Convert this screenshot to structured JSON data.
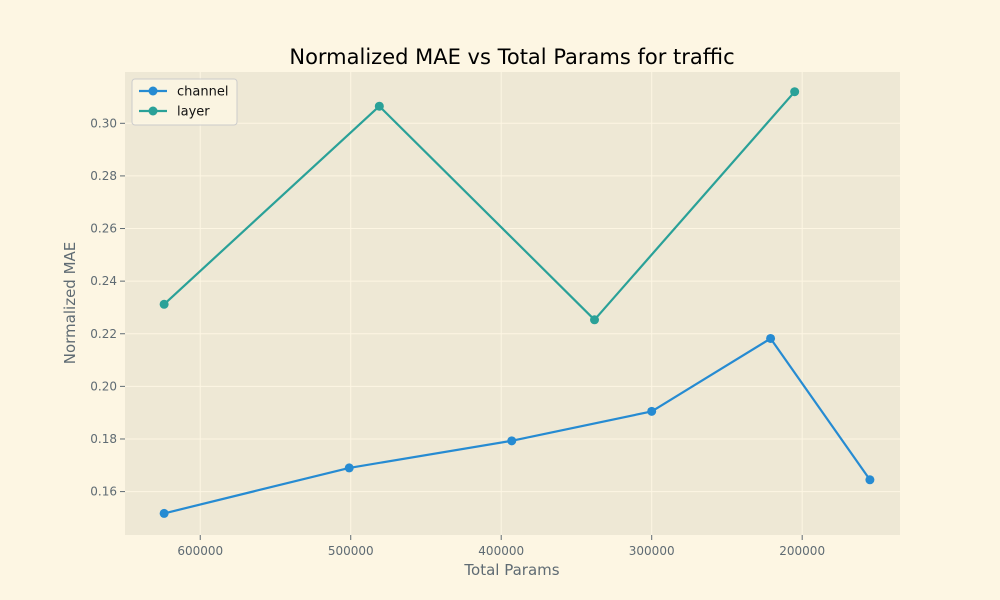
{
  "chart_data": {
    "type": "line",
    "title": "Normalized MAE vs Total Params for traffic",
    "xlabel": "Total Params",
    "ylabel": "Normalized MAE",
    "x_inverted": true,
    "xlim": [
      650000,
      135000
    ],
    "ylim": [
      0.1435,
      0.3195
    ],
    "xticks": [
      600000,
      500000,
      400000,
      300000,
      200000
    ],
    "yticks": [
      0.16,
      0.18,
      0.2,
      0.22,
      0.24,
      0.26,
      0.28,
      0.3
    ],
    "xtick_labels": [
      "600000",
      "500000",
      "400000",
      "300000",
      "200000"
    ],
    "ytick_labels": [
      "0.16",
      "0.18",
      "0.20",
      "0.22",
      "0.24",
      "0.26",
      "0.28",
      "0.30"
    ],
    "grid": true,
    "legend_position": "top-left",
    "series": [
      {
        "name": "channel",
        "color": "#268bd2",
        "x": [
          624000,
          501000,
          393000,
          300000,
          221000,
          155000
        ],
        "y": [
          0.1517,
          0.169,
          0.1793,
          0.1905,
          0.2182,
          0.1645
        ]
      },
      {
        "name": "layer",
        "color": "#2aa198",
        "x": [
          624000,
          481000,
          338000,
          205000
        ],
        "y": [
          0.2312,
          0.3065,
          0.2253,
          0.312
        ]
      }
    ]
  }
}
